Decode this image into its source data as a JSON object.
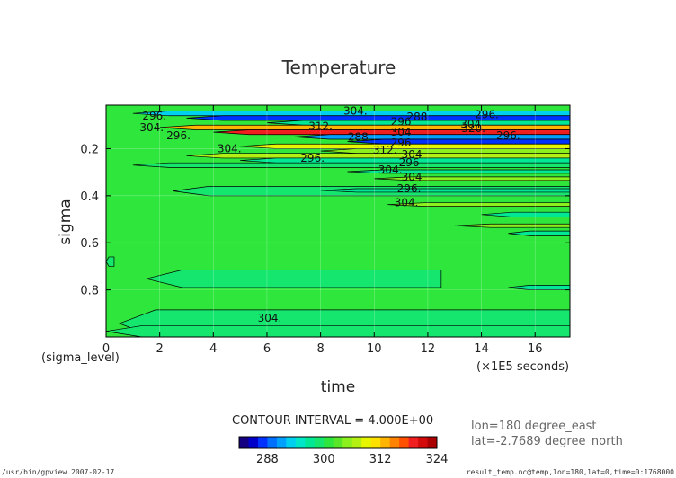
{
  "chart_data": {
    "type": "heatmap",
    "title": "Temperature",
    "xlabel": "time",
    "xunit": "(×1E5 seconds)",
    "ylabel": "sigma",
    "ylevel_label": "(sigma_level)",
    "xlim": [
      0,
      17.3
    ],
    "ylim": [
      1.0,
      0.015
    ],
    "xticks": [
      "0",
      "2",
      "4",
      "6",
      "8",
      "10",
      "12",
      "14",
      "16"
    ],
    "yticks": [
      "0.2",
      "0.4",
      "0.6",
      "0.8"
    ],
    "contour_interval_text": "CONTOUR INTERVAL = 4.000E+00",
    "background_value": 300,
    "colorbar": {
      "min": 282,
      "max": 324,
      "step": 2,
      "ticks": [
        "288",
        "300",
        "312",
        "324"
      ],
      "colors": [
        "#140080",
        "#0000c8",
        "#0032ff",
        "#0070ff",
        "#00a0ff",
        "#00d0f0",
        "#00e6c8",
        "#00e896",
        "#14e66e",
        "#2ee63c",
        "#5ae628",
        "#8cf01e",
        "#b4f014",
        "#e6f500",
        "#ffe100",
        "#ffb400",
        "#ff8200",
        "#ff5000",
        "#f01e1e",
        "#d20a0a",
        "#aa0000"
      ]
    },
    "bands": [
      {
        "sigma": [
          0.04,
          0.06
        ],
        "t": [
          1.0,
          17.3
        ],
        "value": 292
      },
      {
        "sigma": [
          0.06,
          0.08
        ],
        "t": [
          3.0,
          17.3
        ],
        "value": 286
      },
      {
        "sigma": [
          0.08,
          0.1
        ],
        "t": [
          6.0,
          17.3
        ],
        "value": 296
      },
      {
        "sigma": [
          0.1,
          0.12
        ],
        "t": [
          2.0,
          17.3
        ],
        "value": 312
      },
      {
        "sigma": [
          0.12,
          0.14
        ],
        "t": [
          4.0,
          17.3
        ],
        "value": 318
      },
      {
        "sigma": [
          0.14,
          0.16
        ],
        "t": [
          7.0,
          17.3
        ],
        "value": 290
      },
      {
        "sigma": [
          0.16,
          0.18
        ],
        "t": [
          9.0,
          17.3
        ],
        "value": 286
      },
      {
        "sigma": [
          0.18,
          0.2
        ],
        "t": [
          5.0,
          17.3
        ],
        "value": 308
      },
      {
        "sigma": [
          0.2,
          0.22
        ],
        "t": [
          8.0,
          17.3
        ],
        "value": 304
      },
      {
        "sigma": [
          0.22,
          0.24
        ],
        "t": [
          3.0,
          17.3
        ],
        "value": 306
      },
      {
        "sigma": [
          0.24,
          0.26
        ],
        "t": [
          5.0,
          17.3
        ],
        "value": 296
      },
      {
        "sigma": [
          0.26,
          0.28
        ],
        "t": [
          1.0,
          17.3
        ],
        "value": 298
      },
      {
        "sigma": [
          0.29,
          0.305
        ],
        "t": [
          9.0,
          17.3
        ],
        "value": 296
      },
      {
        "sigma": [
          0.32,
          0.335
        ],
        "t": [
          10.0,
          17.3
        ],
        "value": 304
      },
      {
        "sigma": [
          0.36,
          0.4
        ],
        "t": [
          2.5,
          17.3
        ],
        "value": 298
      },
      {
        "sigma": [
          0.37,
          0.385
        ],
        "t": [
          8.0,
          17.3
        ],
        "value": 296
      },
      {
        "sigma": [
          0.43,
          0.445
        ],
        "t": [
          10.5,
          17.3
        ],
        "value": 304
      },
      {
        "sigma": [
          0.47,
          0.49
        ],
        "t": [
          14.0,
          17.3
        ],
        "value": 296
      },
      {
        "sigma": [
          0.52,
          0.535
        ],
        "t": [
          13.0,
          17.3
        ],
        "value": 304
      },
      {
        "sigma": [
          0.55,
          0.57
        ],
        "t": [
          15.0,
          17.3
        ],
        "value": 296
      },
      {
        "sigma": [
          0.66,
          0.7
        ],
        "t": [
          0.0,
          0.3
        ],
        "value": 298
      },
      {
        "sigma": [
          0.715,
          0.79
        ],
        "t": [
          1.5,
          12.5
        ],
        "value": 298
      },
      {
        "sigma": [
          0.78,
          0.8
        ],
        "t": [
          15.0,
          17.3
        ],
        "value": 296
      },
      {
        "sigma": [
          0.885,
          1.0
        ],
        "t": [
          0.5,
          17.3
        ],
        "value": 298
      },
      {
        "sigma": [
          0.952,
          1.0
        ],
        "t": [
          0.0,
          17.3
        ],
        "value": 298
      }
    ],
    "contour_labels": [
      {
        "text": "304.",
        "t": 9.3,
        "sigma": 0.04
      },
      {
        "text": "296.",
        "t": 1.8,
        "sigma": 0.06
      },
      {
        "text": "288",
        "t": 11.6,
        "sigma": 0.065
      },
      {
        "text": "296.",
        "t": 14.2,
        "sigma": 0.055
      },
      {
        "text": "304.",
        "t": 1.7,
        "sigma": 0.11
      },
      {
        "text": "312.",
        "t": 8.0,
        "sigma": 0.105
      },
      {
        "text": "296",
        "t": 11.0,
        "sigma": 0.085
      },
      {
        "text": "304",
        "t": 13.6,
        "sigma": 0.095
      },
      {
        "text": "320.",
        "t": 13.7,
        "sigma": 0.115
      },
      {
        "text": "296.",
        "t": 2.7,
        "sigma": 0.145
      },
      {
        "text": "288",
        "t": 9.4,
        "sigma": 0.15
      },
      {
        "text": "304",
        "t": 11.0,
        "sigma": 0.13
      },
      {
        "text": "296.",
        "t": 15.0,
        "sigma": 0.145
      },
      {
        "text": "296",
        "t": 11.0,
        "sigma": 0.175
      },
      {
        "text": "304.",
        "t": 4.6,
        "sigma": 0.2
      },
      {
        "text": "312.",
        "t": 10.4,
        "sigma": 0.205
      },
      {
        "text": "304",
        "t": 11.4,
        "sigma": 0.225
      },
      {
        "text": "296.",
        "t": 7.7,
        "sigma": 0.24
      },
      {
        "text": "296",
        "t": 11.3,
        "sigma": 0.26
      },
      {
        "text": "304.",
        "t": 10.6,
        "sigma": 0.29
      },
      {
        "text": "304",
        "t": 11.4,
        "sigma": 0.32
      },
      {
        "text": "296.",
        "t": 11.3,
        "sigma": 0.37
      },
      {
        "text": "304.",
        "t": 11.2,
        "sigma": 0.43
      },
      {
        "text": "304.",
        "t": 6.1,
        "sigma": 0.92
      }
    ]
  },
  "info": {
    "lon": "lon=180 degree_east",
    "lat": "lat=-2.7689 degree_north"
  },
  "footer": {
    "left": "/usr/bin/gpview  2007-02-17",
    "right": "result_temp.nc@temp,lon=180,lat=0,time=0:1768000"
  }
}
